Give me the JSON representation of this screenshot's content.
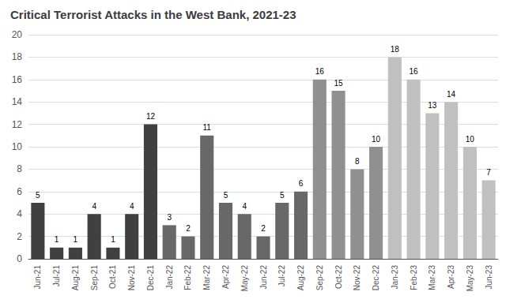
{
  "chart_data": {
    "type": "bar",
    "title": "Critical Terrorist Attacks in the West Bank, 2021-23",
    "categories": [
      "Jun-21",
      "Jul-21",
      "Aug-21",
      "Sep-21",
      "Oct-21",
      "Nov-21",
      "Dec-21",
      "Jan-22",
      "Feb-22",
      "Mar-22",
      "Apr-22",
      "May-22",
      "Jun-22",
      "Jul-22",
      "Aug-22",
      "Sep-22",
      "Oct-22",
      "Nov-22",
      "Dec-22",
      "Jan-23",
      "Feb-23",
      "Mar-23",
      "Apr-23",
      "May-23",
      "Jun-23"
    ],
    "values": [
      5,
      1,
      1,
      4,
      1,
      4,
      12,
      3,
      2,
      11,
      5,
      4,
      2,
      5,
      6,
      16,
      15,
      8,
      10,
      18,
      16,
      13,
      14,
      10,
      7
    ],
    "colors": [
      "#404040",
      "#404040",
      "#404040",
      "#404040",
      "#404040",
      "#404040",
      "#404040",
      "#686868",
      "#686868",
      "#686868",
      "#686868",
      "#686868",
      "#686868",
      "#686868",
      "#686868",
      "#909090",
      "#909090",
      "#909090",
      "#909090",
      "#c0c0c0",
      "#c0c0c0",
      "#c0c0c0",
      "#c0c0c0",
      "#c0c0c0",
      "#c0c0c0"
    ],
    "ylim": [
      0,
      20
    ],
    "yticks": [
      0,
      2,
      4,
      6,
      8,
      10,
      12,
      14,
      16,
      18,
      20
    ],
    "grid": true,
    "data_labels": true
  }
}
